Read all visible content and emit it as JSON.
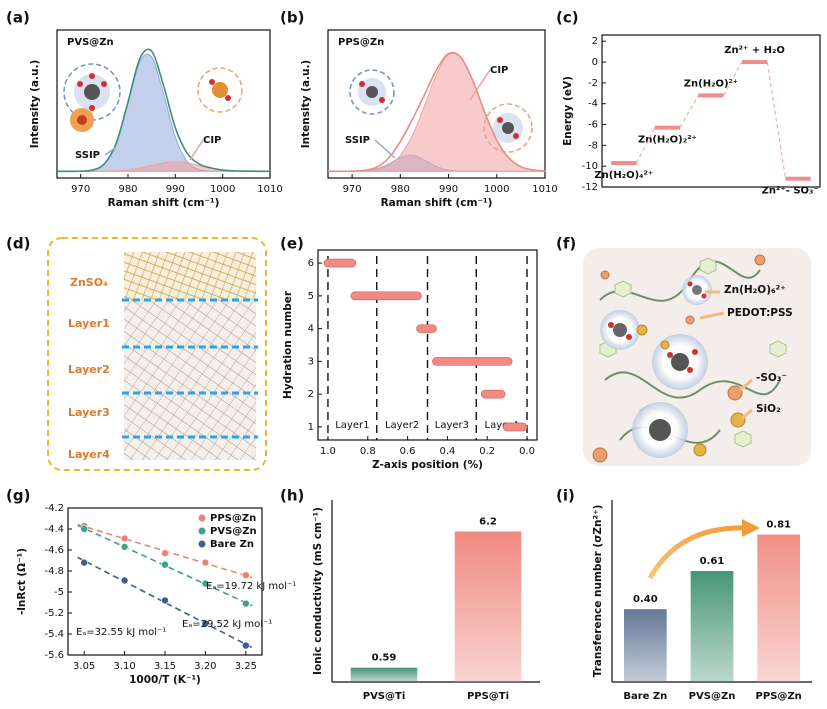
{
  "chart_data": [
    {
      "type": "area",
      "panel": "(a)",
      "title": "PVS@Zn",
      "xlabel": "Raman shift (cm⁻¹)",
      "ylabel": "Intensity (a.u.)",
      "x": [
        965,
        967.5,
        970,
        972.5,
        975,
        977.5,
        980,
        982.5,
        985,
        987.5,
        990,
        992.5,
        995,
        997.5,
        1000,
        1002.5,
        1005,
        1007.5,
        1010
      ],
      "xlim": [
        965,
        1010
      ],
      "xticks": [
        970,
        980,
        990,
        1000,
        1010
      ],
      "ylim": [
        -0.05,
        1.05
      ],
      "series": [
        {
          "name": "SSIP",
          "color": "#8fa9dc",
          "fill": true,
          "values": [
            0,
            0,
            0.001,
            0.009,
            0.054,
            0.204,
            0.506,
            0.814,
            0.85,
            0.576,
            0.253,
            0.072,
            0.013,
            0.002,
            0,
            0,
            0,
            0,
            0
          ]
        },
        {
          "name": "CIP",
          "color": "#f0a0a0",
          "fill": true,
          "values": [
            0,
            0,
            0,
            0,
            0.001,
            0.003,
            0.009,
            0.023,
            0.042,
            0.062,
            0.07,
            0.062,
            0.042,
            0.023,
            0.009,
            0.003,
            0.001,
            0,
            0
          ]
        },
        {
          "color": "#3d8f7a",
          "values": [
            0,
            0,
            0.001,
            0.009,
            0.055,
            0.207,
            0.515,
            0.837,
            0.892,
            0.638,
            0.323,
            0.134,
            0.055,
            0.025,
            0.009,
            0.003,
            0.001,
            0,
            0
          ]
        }
      ]
    },
    {
      "type": "area",
      "panel": "(b)",
      "title": "PPS@Zn",
      "xlabel": "Raman shift (cm⁻¹)",
      "ylabel": "Intensity (a.u.)",
      "x": [
        965,
        967.5,
        970,
        972.5,
        975,
        977.5,
        980,
        982.5,
        985,
        987.5,
        990,
        992.5,
        995,
        997.5,
        1000,
        1002.5,
        1005,
        1007.5,
        1010
      ],
      "xlim": [
        965,
        1010
      ],
      "xticks": [
        970,
        980,
        990,
        1000,
        1010
      ],
      "ylim": [
        -0.05,
        1.05
      ],
      "series": [
        {
          "name": "SSIP",
          "color": "#8fa9dc",
          "fill": true,
          "values": [
            0,
            0,
            0,
            0.003,
            0.016,
            0.052,
            0.102,
            0.119,
            0.083,
            0.035,
            0.009,
            0.001,
            0,
            0,
            0,
            0,
            0,
            0,
            0
          ]
        },
        {
          "name": "CIP",
          "color": "#f0a0a0",
          "fill": true,
          "values": [
            0,
            0,
            0.001,
            0.003,
            0.013,
            0.043,
            0.119,
            0.267,
            0.485,
            0.719,
            0.866,
            0.848,
            0.676,
            0.438,
            0.231,
            0.099,
            0.034,
            0.01,
            0.002
          ]
        },
        {
          "color": "#ec8a84",
          "values": [
            0,
            0,
            0.001,
            0.006,
            0.029,
            0.095,
            0.221,
            0.386,
            0.568,
            0.754,
            0.875,
            0.849,
            0.676,
            0.438,
            0.231,
            0.099,
            0.034,
            0.01,
            0.002
          ]
        }
      ]
    },
    {
      "type": "levels",
      "panel": "(c)",
      "ylabel": "Energy (eV)",
      "categories": [
        "Zn(H₂O)₄²⁺",
        "Zn(H₂O)₂²⁺",
        "Zn(H₂O)²⁺",
        "Zn²⁺ + H₂O",
        "Zn²⁺- SO₃⁻"
      ],
      "values": [
        -9.7,
        -6.3,
        -3.2,
        0,
        -11.2
      ],
      "color": "#f08c8c",
      "ylim": [
        -12,
        2.6
      ],
      "yticks": [
        2,
        0,
        -2,
        -4,
        -6,
        -8,
        -10,
        -12
      ]
    },
    {
      "type": "range",
      "panel": "(e)",
      "xlabel": "Z-axis position (%)",
      "ylabel": "Hydration number",
      "values": [
        6,
        5,
        4,
        3,
        2,
        1
      ],
      "x_ranges": [
        [
          1.02,
          0.86
        ],
        [
          0.885,
          0.53
        ],
        [
          0.555,
          0.455
        ],
        [
          0.475,
          0.075
        ],
        [
          0.23,
          0.11
        ],
        [
          0.12,
          0
        ]
      ],
      "color": "#f08a84",
      "boundaries": [
        1.0,
        0.755,
        0.5,
        0.255,
        0.0
      ],
      "regions": [
        "Layer1",
        "Layer2",
        "Layer3",
        "Layer4"
      ],
      "xlim": [
        1.05,
        -0.05
      ],
      "xticks": [
        {
          "value": 1,
          "label": "1.0"
        },
        0.8,
        0.6,
        0.4,
        0.2,
        {
          "value": 0,
          "label": "0.0"
        }
      ],
      "ylim": [
        0.6,
        6.4
      ],
      "yticks": [
        1,
        2,
        3,
        4,
        5,
        6
      ]
    },
    {
      "type": "scatter",
      "panel": "(g)",
      "xlabel": "1000/T (K⁻¹)",
      "ylabel": "-lnRct (Ω⁻¹)",
      "x": [
        3.05,
        3.1,
        3.15,
        3.2,
        3.25
      ],
      "xlim": [
        3.03,
        3.27
      ],
      "xticks": [
        3.05,
        {
          "value": 3.1,
          "label": "3.10"
        },
        3.15,
        {
          "value": 3.2,
          "label": "3.20"
        },
        3.25
      ],
      "ylim": [
        -5.6,
        -4.2
      ],
      "yticks": [
        -4.2,
        -4.4,
        -4.6,
        -4.8,
        -5.0,
        -5.2,
        -5.4,
        -5.6
      ],
      "legend": "upper right",
      "fit": true,
      "series": [
        {
          "name": "PPS@Zn",
          "color": "#e8837a",
          "values": [
            -4.37,
            -4.49,
            -4.63,
            -4.72,
            -4.84
          ]
        },
        {
          "name": "PVS@Zn",
          "color": "#3fa08c",
          "values": [
            -4.4,
            -4.57,
            -4.74,
            -4.92,
            -5.11
          ]
        },
        {
          "name": "Bare Zn",
          "color": "#3f5f8a",
          "values": [
            -4.72,
            -4.89,
            -5.08,
            -5.3,
            -5.51
          ]
        }
      ],
      "annotations": [
        "Eₐ=19.72 kJ mol⁻¹",
        "Eₐ=29.52 kJ mol⁻¹",
        "Eₐ=32.55 kJ mol⁻¹"
      ]
    },
    {
      "type": "bar",
      "panel": "(h)",
      "ylabel": "Ionic conductivity (mS cm⁻¹)",
      "categories": [
        "PVS@Ti",
        "PPS@Ti"
      ],
      "values": [
        0.59,
        6.2
      ],
      "colors": [
        "#3f8f72",
        "#f0837a"
      ],
      "ylim": [
        0,
        7.5
      ]
    },
    {
      "type": "bar",
      "panel": "(i)",
      "ylabel": "Transference number (σZn²⁺)",
      "categories": [
        "Bare Zn",
        "PVS@Zn",
        "PPS@Zn"
      ],
      "values": [
        0.4,
        0.61,
        0.81
      ],
      "value_labels": [
        "0.40",
        "0.61",
        "0.81"
      ],
      "colors": [
        "#5a7090",
        "#3f9070",
        "#f08a80"
      ],
      "ylim": [
        0,
        1.0
      ]
    }
  ],
  "illustrations": [
    {
      "panel": "(d)",
      "labels": [
        "ZnSO₄",
        "Layer1",
        "Layer2",
        "Layer3",
        "Layer4"
      ]
    },
    {
      "panel": "(f)",
      "labels": [
        "Zn(H₂O)₆²⁺",
        "PEDOT:PSS",
        "-SO₃⁻",
        "SiO₂"
      ]
    }
  ]
}
